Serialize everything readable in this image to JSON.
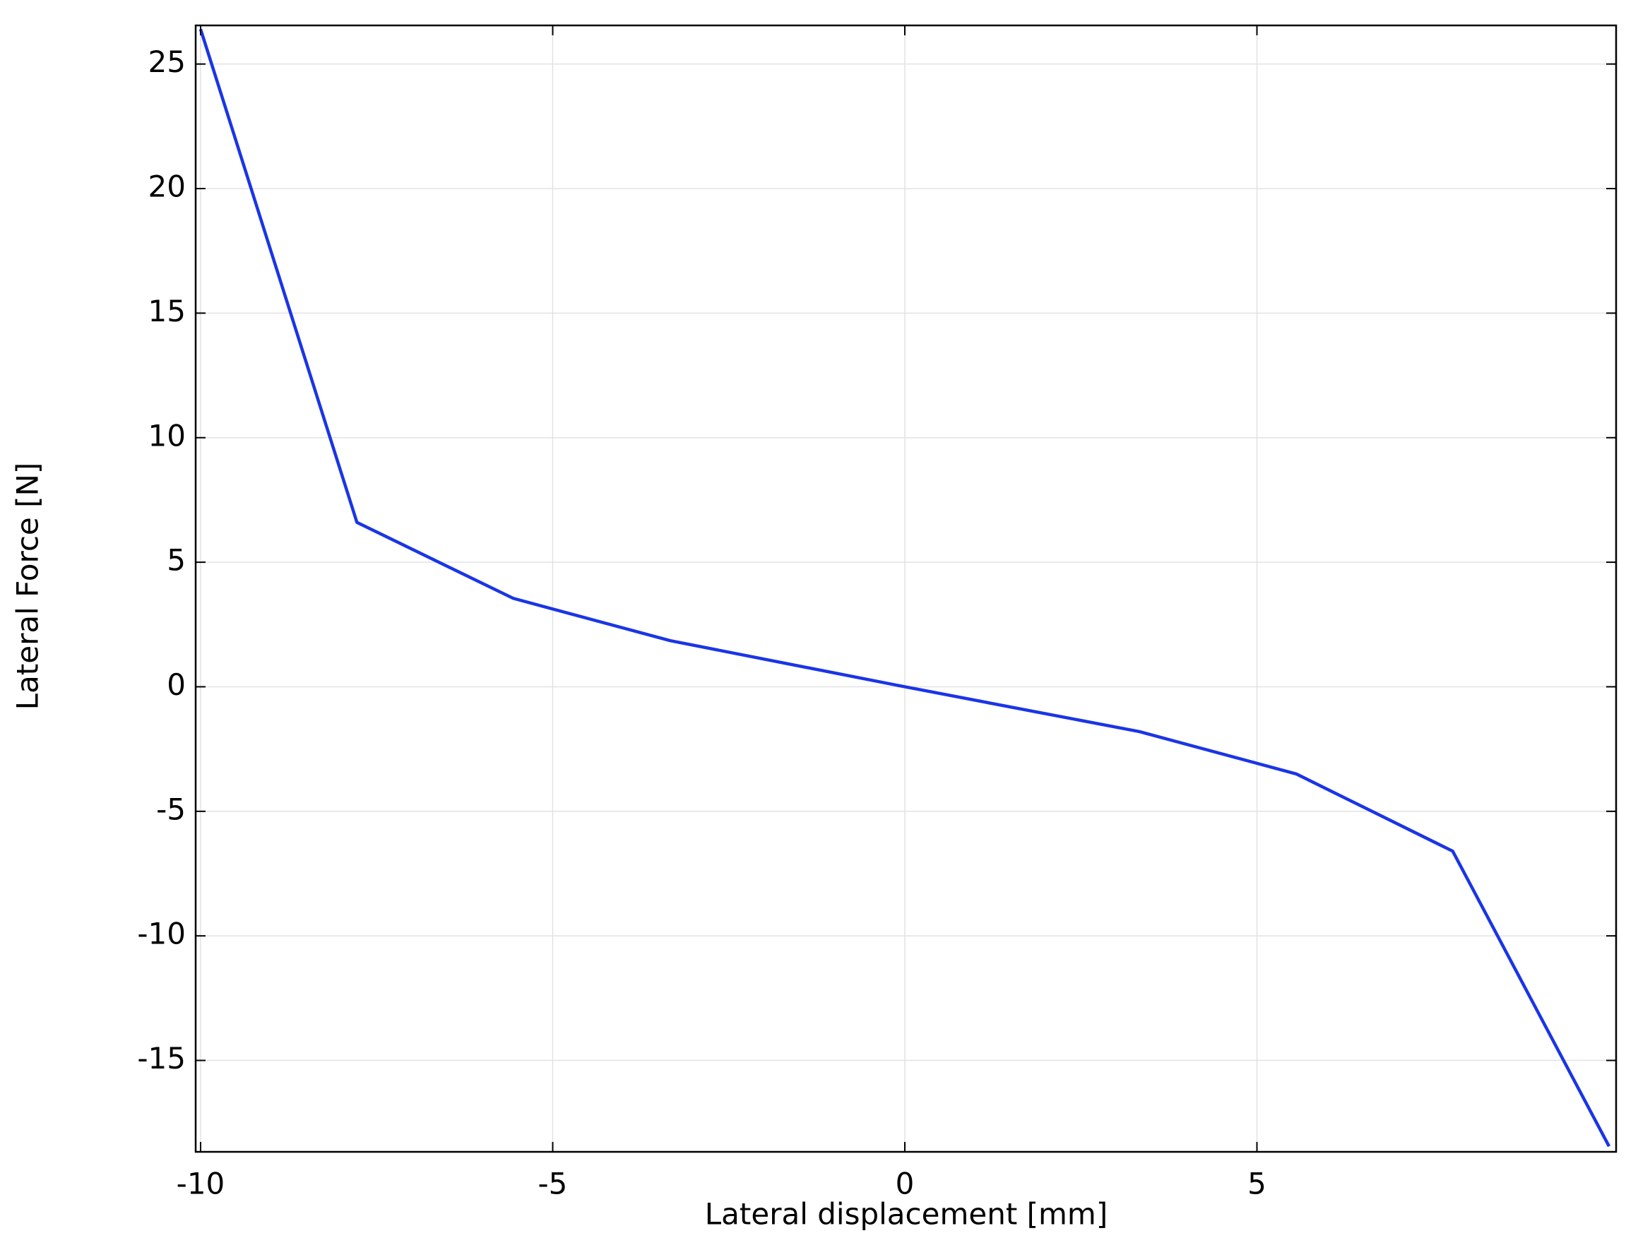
{
  "chart_data": {
    "type": "line",
    "xlabel": "Lateral displacement [mm]",
    "ylabel": "Lateral Force  [N]",
    "x": [
      -10,
      -7.78,
      -5.56,
      -3.33,
      0,
      3.33,
      5.56,
      7.78,
      10
    ],
    "series": [
      {
        "name": "Lateral Force",
        "color": "#1a35e6",
        "values": [
          26.4,
          6.6,
          3.55,
          1.85,
          0,
          -1.8,
          -3.5,
          -6.6,
          -18.45
        ]
      }
    ],
    "xlim": [
      -10.07,
      10.1
    ],
    "ylim": [
      -18.67,
      26.55
    ],
    "xticks": [
      -10,
      -5,
      0,
      5
    ],
    "yticks": [
      -15,
      -10,
      -5,
      0,
      5,
      10,
      15,
      20,
      25
    ],
    "grid": true
  }
}
